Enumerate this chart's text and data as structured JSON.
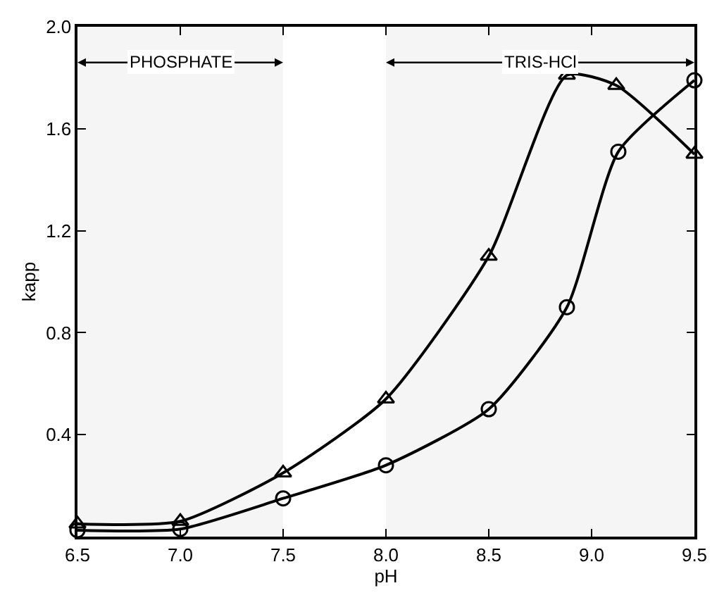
{
  "chart_data": {
    "type": "line",
    "xlabel": "pH",
    "ylabel": "kapp",
    "series": [
      {
        "color": "#000000",
        "marker": "triangle",
        "x": [
          6.5,
          7.0,
          7.5,
          8.0,
          8.5,
          8.88,
          9.12,
          9.5
        ],
        "values": [
          0.05,
          0.06,
          0.25,
          0.54,
          1.1,
          1.81,
          1.77,
          1.5
        ]
      },
      {
        "color": "#000000",
        "marker": "circle",
        "x": [
          6.5,
          7.0,
          7.5,
          8.0,
          8.5,
          8.88,
          9.13,
          9.5
        ],
        "values": [
          0.025,
          0.03,
          0.15,
          0.28,
          0.5,
          0.9,
          1.51,
          1.79
        ]
      }
    ],
    "xlim": [
      6.5,
      9.5
    ],
    "xticks": [
      6.5,
      {
        "value": 7,
        "label": "7.0"
      },
      7.5,
      {
        "value": 8,
        "label": "8.0"
      },
      8.5,
      {
        "value": 9,
        "label": "9.0"
      },
      9.5
    ],
    "ylim": [
      0,
      2.0
    ],
    "yticks": [
      0.4,
      0.8,
      1.2,
      1.6,
      {
        "value": 2,
        "label": "2.0"
      }
    ],
    "bands": [
      {
        "axis": "x",
        "from": 6.5,
        "to": 7.5,
        "label": "PHOSPHATE",
        "color": "#000000"
      },
      {
        "axis": "x",
        "from": 8.0,
        "to": 9.5,
        "label": "TRIS-HCl",
        "color": "#000000"
      }
    ],
    "line_style": "solid"
  }
}
